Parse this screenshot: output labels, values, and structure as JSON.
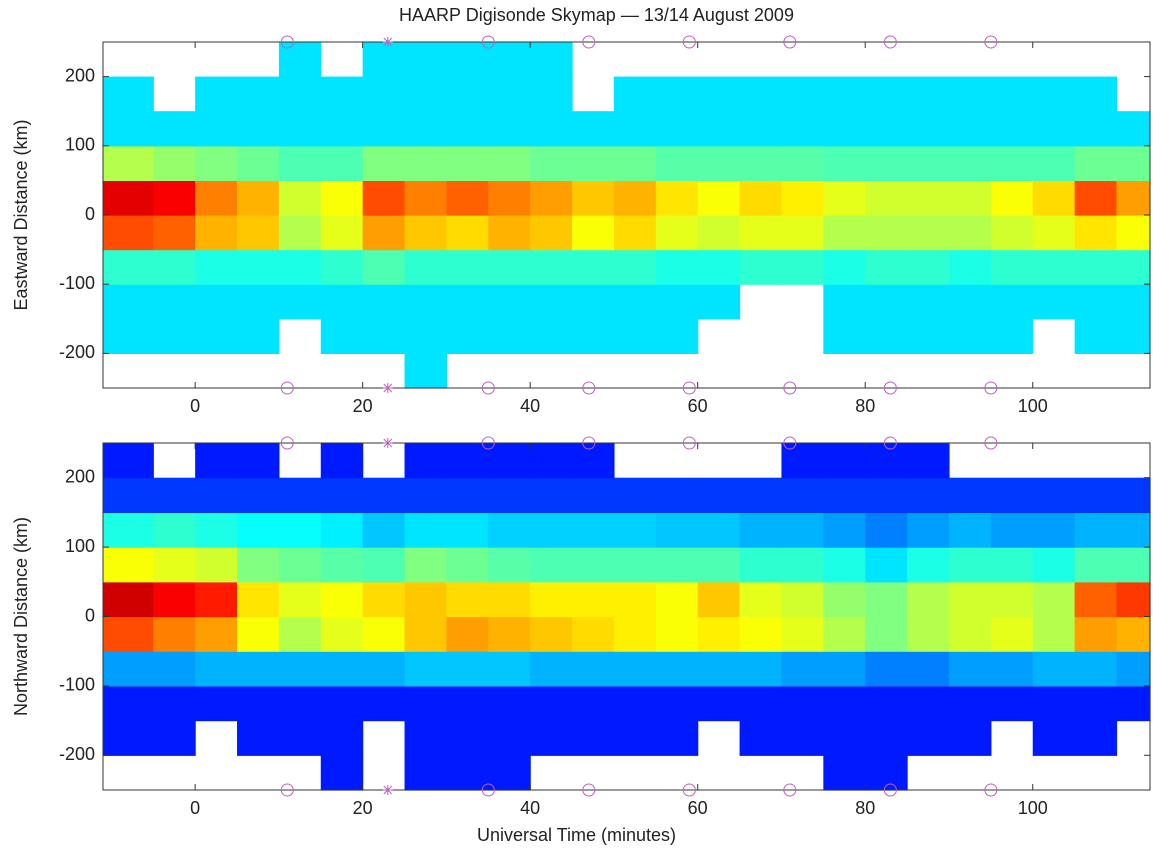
{
  "chart_data": [
    {
      "type": "heatmap",
      "title": "HAARP Digisonde Skymap — 13/14 August 2009",
      "ylabel": "Eastward Distance (km)",
      "colormap": "jet",
      "clim": [
        0,
        1
      ],
      "xlim": [
        -11,
        114
      ],
      "ylim": [
        -250,
        250
      ],
      "xticks": [
        0,
        20,
        40,
        60,
        80,
        100
      ],
      "yticks": [
        -200,
        -100,
        0,
        100,
        200
      ],
      "xbins": [
        -11,
        -5,
        0,
        5,
        10,
        15,
        20,
        25,
        30,
        35,
        40,
        45,
        50,
        55,
        60,
        65,
        70,
        75,
        80,
        85,
        90,
        95,
        100,
        105,
        110,
        114
      ],
      "ybins": [
        -250,
        -200,
        -150,
        -100,
        -50,
        0,
        50,
        100,
        150,
        200,
        250
      ],
      "z": [
        [
          null,
          null,
          null,
          null,
          null,
          null,
          null,
          0.35,
          null,
          null,
          null,
          null,
          null,
          null,
          null,
          null,
          null,
          null,
          null,
          null,
          null,
          null,
          null,
          null,
          null
        ],
        [
          0.35,
          0.35,
          0.35,
          0.35,
          null,
          0.35,
          0.35,
          0.35,
          0.35,
          0.35,
          0.35,
          0.35,
          0.35,
          0.35,
          null,
          null,
          null,
          0.35,
          0.35,
          0.35,
          0.35,
          0.35,
          null,
          0.35,
          0.35
        ],
        [
          0.35,
          0.35,
          0.35,
          0.35,
          0.35,
          0.35,
          0.35,
          0.35,
          0.35,
          0.35,
          0.35,
          0.35,
          0.35,
          0.35,
          0.35,
          null,
          null,
          0.35,
          0.35,
          0.35,
          0.35,
          0.35,
          0.35,
          0.35,
          0.35
        ],
        [
          0.42,
          0.42,
          0.4,
          0.4,
          0.4,
          0.42,
          0.45,
          0.42,
          0.42,
          0.42,
          0.42,
          0.42,
          0.42,
          0.4,
          0.4,
          0.42,
          0.42,
          0.4,
          0.42,
          0.42,
          0.4,
          0.42,
          0.42,
          0.42,
          0.42
        ],
        [
          0.8,
          0.78,
          0.7,
          0.68,
          0.55,
          0.6,
          0.72,
          0.68,
          0.66,
          0.7,
          0.68,
          0.62,
          0.66,
          0.6,
          0.58,
          0.6,
          0.6,
          0.55,
          0.55,
          0.55,
          0.55,
          0.58,
          0.6,
          0.65,
          0.62
        ],
        [
          0.9,
          0.88,
          0.75,
          0.7,
          0.58,
          0.62,
          0.8,
          0.75,
          0.78,
          0.75,
          0.72,
          0.68,
          0.7,
          0.65,
          0.62,
          0.66,
          0.64,
          0.6,
          0.58,
          0.58,
          0.58,
          0.62,
          0.66,
          0.8,
          0.72
        ],
        [
          0.55,
          0.52,
          0.5,
          0.48,
          0.45,
          0.45,
          0.5,
          0.5,
          0.5,
          0.5,
          0.48,
          0.48,
          0.48,
          0.46,
          0.46,
          0.46,
          0.46,
          0.45,
          0.45,
          0.45,
          0.45,
          0.45,
          0.45,
          0.48,
          0.48
        ],
        [
          0.35,
          0.35,
          0.35,
          0.35,
          0.35,
          0.35,
          0.35,
          0.35,
          0.35,
          0.35,
          0.35,
          0.35,
          0.35,
          0.35,
          0.35,
          0.35,
          0.35,
          0.35,
          0.35,
          0.35,
          0.35,
          0.35,
          0.35,
          0.35,
          0.35
        ],
        [
          0.35,
          null,
          0.35,
          0.35,
          0.35,
          0.35,
          0.35,
          0.35,
          0.35,
          0.35,
          0.35,
          null,
          0.35,
          0.35,
          0.35,
          0.35,
          0.35,
          0.35,
          0.35,
          0.35,
          0.35,
          0.35,
          0.35,
          0.35,
          null
        ],
        [
          null,
          null,
          null,
          null,
          0.35,
          null,
          0.35,
          0.35,
          0.35,
          0.35,
          0.35,
          null,
          null,
          null,
          null,
          null,
          null,
          null,
          null,
          null,
          null,
          null,
          null,
          null,
          null
        ]
      ],
      "marker_color": "#c060c0",
      "circle_markers_x": [
        11,
        35,
        47,
        59,
        71,
        83,
        95
      ],
      "star_markers_x": [
        23
      ]
    },
    {
      "type": "heatmap",
      "ylabel": "Northward Distance (km)",
      "xlabel": "Universal Time (minutes)",
      "colormap": "jet",
      "clim": [
        0,
        1
      ],
      "xlim": [
        -11,
        114
      ],
      "ylim": [
        -250,
        250
      ],
      "xticks": [
        0,
        20,
        40,
        60,
        80,
        100
      ],
      "yticks": [
        -200,
        -100,
        0,
        100,
        200
      ],
      "xbins": [
        -11,
        -5,
        0,
        5,
        10,
        15,
        20,
        25,
        30,
        35,
        40,
        45,
        50,
        55,
        60,
        65,
        70,
        75,
        80,
        85,
        90,
        95,
        100,
        105,
        110,
        114
      ],
      "ybins": [
        -250,
        -200,
        -150,
        -100,
        -50,
        0,
        50,
        100,
        150,
        200,
        250
      ],
      "z": [
        [
          null,
          null,
          null,
          null,
          null,
          0.15,
          null,
          0.15,
          0.15,
          0.15,
          null,
          null,
          null,
          null,
          null,
          null,
          null,
          0.15,
          0.15,
          null,
          null,
          null,
          null,
          null,
          null
        ],
        [
          0.15,
          0.15,
          null,
          0.15,
          0.15,
          0.15,
          null,
          0.15,
          0.15,
          0.15,
          0.15,
          0.15,
          0.15,
          0.15,
          null,
          0.15,
          0.15,
          0.15,
          0.15,
          0.15,
          0.15,
          null,
          0.15,
          0.15,
          null
        ],
        [
          0.15,
          0.15,
          0.15,
          0.15,
          0.15,
          0.15,
          0.15,
          0.15,
          0.15,
          0.15,
          0.15,
          0.15,
          0.15,
          0.15,
          0.15,
          0.15,
          0.15,
          0.15,
          0.15,
          0.15,
          0.15,
          0.15,
          0.15,
          0.15,
          0.15
        ],
        [
          0.28,
          0.28,
          0.3,
          0.3,
          0.3,
          0.3,
          0.3,
          0.32,
          0.32,
          0.32,
          0.3,
          0.3,
          0.3,
          0.3,
          0.3,
          0.3,
          0.28,
          0.28,
          0.25,
          0.25,
          0.28,
          0.28,
          0.3,
          0.3,
          0.28
        ],
        [
          0.8,
          0.75,
          0.72,
          0.62,
          0.55,
          0.6,
          0.62,
          0.68,
          0.72,
          0.7,
          0.68,
          0.66,
          0.64,
          0.62,
          0.64,
          0.62,
          0.6,
          0.55,
          0.5,
          0.55,
          0.58,
          0.6,
          0.55,
          0.72,
          0.7
        ],
        [
          0.92,
          0.88,
          0.85,
          0.65,
          0.6,
          0.62,
          0.66,
          0.68,
          0.66,
          0.66,
          0.64,
          0.64,
          0.64,
          0.62,
          0.68,
          0.6,
          0.58,
          0.52,
          0.5,
          0.55,
          0.58,
          0.58,
          0.55,
          0.78,
          0.82
        ],
        [
          0.62,
          0.6,
          0.58,
          0.5,
          0.48,
          0.46,
          0.45,
          0.5,
          0.48,
          0.46,
          0.45,
          0.45,
          0.45,
          0.45,
          0.45,
          0.42,
          0.42,
          0.4,
          0.35,
          0.4,
          0.42,
          0.42,
          0.4,
          0.45,
          0.45
        ],
        [
          0.4,
          0.42,
          0.4,
          0.38,
          0.38,
          0.36,
          0.32,
          0.35,
          0.35,
          0.33,
          0.33,
          0.33,
          0.33,
          0.32,
          0.32,
          0.3,
          0.3,
          0.28,
          0.25,
          0.28,
          0.3,
          0.28,
          0.28,
          0.3,
          0.3
        ],
        [
          0.18,
          0.18,
          0.18,
          0.18,
          0.18,
          0.18,
          0.18,
          0.18,
          0.18,
          0.18,
          0.18,
          0.18,
          0.18,
          0.18,
          0.18,
          0.18,
          0.18,
          0.18,
          0.18,
          0.18,
          0.18,
          0.18,
          0.18,
          0.18,
          0.18
        ],
        [
          0.15,
          null,
          0.15,
          0.15,
          null,
          0.15,
          null,
          0.15,
          0.15,
          0.15,
          0.15,
          0.15,
          null,
          null,
          null,
          null,
          0.15,
          0.15,
          0.15,
          0.15,
          null,
          null,
          null,
          null,
          null
        ]
      ],
      "marker_color": "#c060c0",
      "circle_markers_x": [
        11,
        35,
        47,
        59,
        71,
        83,
        95
      ],
      "star_markers_x": [
        23
      ]
    }
  ]
}
